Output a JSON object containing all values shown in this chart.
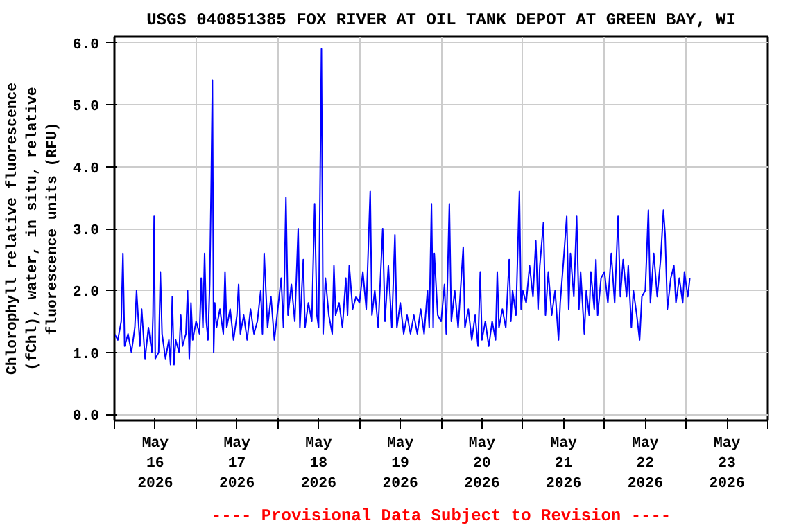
{
  "chart_data": {
    "type": "line",
    "title": "USGS 040851385 FOX RIVER AT OIL TANK DEPOT AT GREEN BAY, WI",
    "ylabel": "Chlorophyll relative fluorescence\n(fChl), water, in situ, relative\nfluorescence units (RFU)",
    "annotations": [
      "---- Provisional Data Subject to Revision ----"
    ],
    "xlim": [
      "2026-05-16T00:00",
      "2026-05-24T00:00"
    ],
    "xticks": [
      {
        "value": "2026-05-16T00:00",
        "label": null
      },
      {
        "value": "2026-05-16T12:00",
        "label": "May\n16\n2026"
      },
      {
        "value": "2026-05-17T00:00",
        "label": null
      },
      {
        "value": "2026-05-17T12:00",
        "label": "May\n17\n2026"
      },
      {
        "value": "2026-05-18T00:00",
        "label": null
      },
      {
        "value": "2026-05-18T12:00",
        "label": "May\n18\n2026"
      },
      {
        "value": "2026-05-19T00:00",
        "label": null
      },
      {
        "value": "2026-05-19T12:00",
        "label": "May\n19\n2026"
      },
      {
        "value": "2026-05-20T00:00",
        "label": null
      },
      {
        "value": "2026-05-20T12:00",
        "label": "May\n20\n2026"
      },
      {
        "value": "2026-05-21T00:00",
        "label": null
      },
      {
        "value": "2026-05-21T12:00",
        "label": "May\n21\n2026"
      },
      {
        "value": "2026-05-22T00:00",
        "label": null
      },
      {
        "value": "2026-05-22T12:00",
        "label": "May\n22\n2026"
      },
      {
        "value": "2026-05-23T00:00",
        "label": null
      },
      {
        "value": "2026-05-23T12:00",
        "label": "May\n23\n2026"
      },
      {
        "value": "2026-05-24T00:00",
        "label": null
      }
    ],
    "ylim": [
      -0.1,
      6.1
    ],
    "yticks": [
      {
        "value": 0,
        "label": "0.0"
      },
      {
        "value": 1,
        "label": "1.0"
      },
      {
        "value": 2,
        "label": "2.0"
      },
      {
        "value": 3,
        "label": "3.0"
      },
      {
        "value": 4,
        "label": "4.0"
      },
      {
        "value": 5,
        "label": "5.0"
      },
      {
        "value": 6,
        "label": "6.0"
      }
    ],
    "grid": true,
    "line_style": "solid",
    "marker": "none",
    "x": [
      "2026-05-16T00:00",
      "2026-05-16T01:00",
      "2026-05-16T02:00",
      "2026-05-16T02:30",
      "2026-05-16T03:00",
      "2026-05-16T04:00",
      "2026-05-16T05:00",
      "2026-05-16T06:00",
      "2026-05-16T06:30",
      "2026-05-16T07:30",
      "2026-05-16T08:00",
      "2026-05-16T09:00",
      "2026-05-16T10:00",
      "2026-05-16T11:00",
      "2026-05-16T11:20",
      "2026-05-16T11:40",
      "2026-05-16T12:00",
      "2026-05-16T13:00",
      "2026-05-16T13:30",
      "2026-05-16T14:00",
      "2026-05-16T15:00",
      "2026-05-16T16:00",
      "2026-05-16T16:30",
      "2026-05-16T17:00",
      "2026-05-16T17:30",
      "2026-05-16T18:00",
      "2026-05-16T19:00",
      "2026-05-16T19:30",
      "2026-05-16T20:00",
      "2026-05-16T21:00",
      "2026-05-16T21:30",
      "2026-05-16T22:00",
      "2026-05-16T22:30",
      "2026-05-16T23:00",
      "2026-05-17T00:00",
      "2026-05-17T01:00",
      "2026-05-17T01:30",
      "2026-05-17T02:00",
      "2026-05-17T02:30",
      "2026-05-17T03:00",
      "2026-05-17T03:30",
      "2026-05-17T04:00",
      "2026-05-17T04:24",
      "2026-05-17T04:48",
      "2026-05-17T05:10",
      "2026-05-17T05:30",
      "2026-05-17T06:00",
      "2026-05-17T07:00",
      "2026-05-17T08:00",
      "2026-05-17T08:30",
      "2026-05-17T09:00",
      "2026-05-17T10:00",
      "2026-05-17T11:00",
      "2026-05-17T12:00",
      "2026-05-17T12:30",
      "2026-05-17T13:00",
      "2026-05-17T14:00",
      "2026-05-17T15:00",
      "2026-05-17T16:00",
      "2026-05-17T17:00",
      "2026-05-17T18:00",
      "2026-05-17T19:00",
      "2026-05-17T19:30",
      "2026-05-17T20:00",
      "2026-05-17T21:00",
      "2026-05-17T22:00",
      "2026-05-17T23:00",
      "2026-05-18T00:00",
      "2026-05-18T01:00",
      "2026-05-18T01:40",
      "2026-05-18T02:24",
      "2026-05-18T03:00",
      "2026-05-18T04:00",
      "2026-05-18T05:00",
      "2026-05-18T06:00",
      "2026-05-18T06:30",
      "2026-05-18T07:30",
      "2026-05-18T08:00",
      "2026-05-18T09:00",
      "2026-05-18T10:00",
      "2026-05-18T10:50",
      "2026-05-18T11:30",
      "2026-05-18T12:00",
      "2026-05-18T12:50",
      "2026-05-18T13:20",
      "2026-05-18T14:00",
      "2026-05-18T15:00",
      "2026-05-18T16:00",
      "2026-05-18T16:30",
      "2026-05-18T17:00",
      "2026-05-18T18:00",
      "2026-05-18T19:00",
      "2026-05-18T20:00",
      "2026-05-18T20:30",
      "2026-05-18T21:00",
      "2026-05-18T22:00",
      "2026-05-18T23:00",
      "2026-05-19T00:00",
      "2026-05-19T01:00",
      "2026-05-19T02:00",
      "2026-05-19T03:10",
      "2026-05-19T03:40",
      "2026-05-19T04:30",
      "2026-05-19T05:30",
      "2026-05-19T06:50",
      "2026-05-19T07:30",
      "2026-05-19T08:30",
      "2026-05-19T09:30",
      "2026-05-19T10:25",
      "2026-05-19T11:00",
      "2026-05-19T12:00",
      "2026-05-19T13:00",
      "2026-05-19T14:00",
      "2026-05-19T15:00",
      "2026-05-19T16:00",
      "2026-05-19T17:00",
      "2026-05-19T18:00",
      "2026-05-19T19:00",
      "2026-05-19T20:00",
      "2026-05-19T20:30",
      "2026-05-19T21:10",
      "2026-05-19T21:40",
      "2026-05-19T22:00",
      "2026-05-19T23:00",
      "2026-05-20T00:00",
      "2026-05-20T01:00",
      "2026-05-20T01:30",
      "2026-05-20T02:25",
      "2026-05-20T03:00",
      "2026-05-20T04:00",
      "2026-05-20T05:00",
      "2026-05-20T06:30",
      "2026-05-20T07:00",
      "2026-05-20T08:00",
      "2026-05-20T09:00",
      "2026-05-20T10:00",
      "2026-05-20T10:50",
      "2026-05-20T11:30",
      "2026-05-20T12:00",
      "2026-05-20T13:00",
      "2026-05-20T14:00",
      "2026-05-20T15:00",
      "2026-05-20T16:00",
      "2026-05-20T16:30",
      "2026-05-20T17:00",
      "2026-05-20T18:00",
      "2026-05-20T19:00",
      "2026-05-20T20:00",
      "2026-05-20T20:30",
      "2026-05-20T21:00",
      "2026-05-20T22:00",
      "2026-05-20T23:00",
      "2026-05-20T23:30",
      "2026-05-21T00:00",
      "2026-05-21T01:00",
      "2026-05-21T02:00",
      "2026-05-21T03:00",
      "2026-05-21T03:50",
      "2026-05-21T04:30",
      "2026-05-21T05:00",
      "2026-05-21T06:05",
      "2026-05-21T06:40",
      "2026-05-21T07:30",
      "2026-05-21T08:30",
      "2026-05-21T09:30",
      "2026-05-21T10:30",
      "2026-05-21T11:00",
      "2026-05-21T12:00",
      "2026-05-21T12:55",
      "2026-05-21T13:30",
      "2026-05-21T14:00",
      "2026-05-21T15:00",
      "2026-05-21T15:50",
      "2026-05-21T16:30",
      "2026-05-21T17:00",
      "2026-05-21T18:05",
      "2026-05-21T18:40",
      "2026-05-21T19:30",
      "2026-05-21T20:00",
      "2026-05-21T21:00",
      "2026-05-21T21:30",
      "2026-05-21T22:00",
      "2026-05-21T23:00",
      "2026-05-22T00:00",
      "2026-05-22T01:00",
      "2026-05-22T02:00",
      "2026-05-22T03:00",
      "2026-05-22T04:00",
      "2026-05-22T04:40",
      "2026-05-22T05:30",
      "2026-05-22T06:30",
      "2026-05-22T07:00",
      "2026-05-22T07:55",
      "2026-05-22T08:30",
      "2026-05-22T09:30",
      "2026-05-22T10:20",
      "2026-05-22T11:00",
      "2026-05-22T12:00",
      "2026-05-22T12:55",
      "2026-05-22T13:30",
      "2026-05-22T14:30",
      "2026-05-22T15:30",
      "2026-05-22T16:30",
      "2026-05-22T17:20",
      "2026-05-22T17:50",
      "2026-05-22T18:30",
      "2026-05-22T19:30",
      "2026-05-22T20:25",
      "2026-05-22T21:00",
      "2026-05-22T22:00",
      "2026-05-22T23:00",
      "2026-05-22T23:30",
      "2026-05-23T00:30",
      "2026-05-23T01:05"
    ],
    "series": [
      {
        "color": "#0000ff",
        "values": [
          1.3,
          1.2,
          1.5,
          2.6,
          1.1,
          1.3,
          1.0,
          1.4,
          2.0,
          1.1,
          1.7,
          0.9,
          1.4,
          1.0,
          1.6,
          3.2,
          0.9,
          1.0,
          2.3,
          1.3,
          0.9,
          1.2,
          0.8,
          1.9,
          0.8,
          1.2,
          1.0,
          1.6,
          1.1,
          1.3,
          2.0,
          0.9,
          1.8,
          1.2,
          1.5,
          1.3,
          2.2,
          1.4,
          2.6,
          1.5,
          1.2,
          2.1,
          3.6,
          5.4,
          1.0,
          1.8,
          1.4,
          1.7,
          1.3,
          2.3,
          1.4,
          1.7,
          1.2,
          1.6,
          2.1,
          1.3,
          1.6,
          1.2,
          1.7,
          1.3,
          1.5,
          2.0,
          1.3,
          2.6,
          1.4,
          1.9,
          1.2,
          1.7,
          2.2,
          1.4,
          3.5,
          1.6,
          2.1,
          1.5,
          3.0,
          1.4,
          2.5,
          1.4,
          1.8,
          1.5,
          3.4,
          1.6,
          1.4,
          5.9,
          1.3,
          2.2,
          1.6,
          1.3,
          2.4,
          1.6,
          1.8,
          1.4,
          2.2,
          1.6,
          2.4,
          1.7,
          1.9,
          1.8,
          2.3,
          1.7,
          3.6,
          1.6,
          2.0,
          1.4,
          3.0,
          1.5,
          2.4,
          1.4,
          2.9,
          1.4,
          1.8,
          1.3,
          1.6,
          1.3,
          1.6,
          1.3,
          1.7,
          1.3,
          2.0,
          1.4,
          3.4,
          1.4,
          2.6,
          1.6,
          1.5,
          2.1,
          1.3,
          3.4,
          1.5,
          2.0,
          1.4,
          2.7,
          1.4,
          1.7,
          1.2,
          1.6,
          1.1,
          2.3,
          1.2,
          1.5,
          1.1,
          1.5,
          1.2,
          2.3,
          1.4,
          1.7,
          1.4,
          2.5,
          1.5,
          2.0,
          1.6,
          3.6,
          1.7,
          2.0,
          1.8,
          2.4,
          1.9,
          2.8,
          1.7,
          2.4,
          3.1,
          1.6,
          2.3,
          1.6,
          2.0,
          1.2,
          1.8,
          2.5,
          3.2,
          1.7,
          2.6,
          1.9,
          3.2,
          1.7,
          2.3,
          1.3,
          2.0,
          1.6,
          2.3,
          1.7,
          2.5,
          1.6,
          2.2,
          2.3,
          1.8,
          2.6,
          1.8,
          3.2,
          1.9,
          2.5,
          1.9,
          2.4,
          1.4,
          2.0,
          1.6,
          1.2,
          1.9,
          2.0,
          3.3,
          1.8,
          2.6,
          1.9,
          2.5,
          3.3,
          2.9,
          1.7,
          2.2,
          2.4,
          1.8,
          2.2,
          1.8,
          2.3,
          1.9,
          2.2
        ]
      }
    ]
  }
}
